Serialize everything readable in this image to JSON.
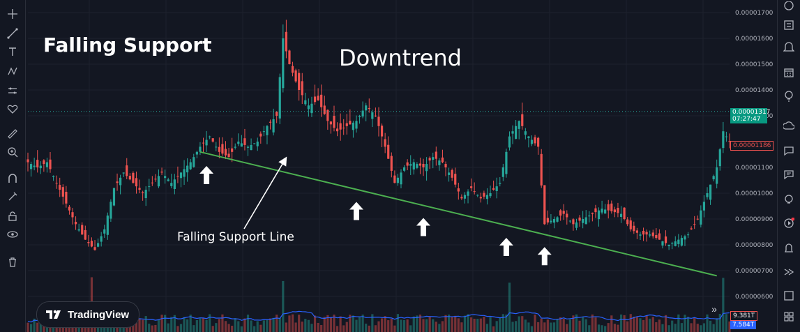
{
  "annotations": {
    "title": "Falling Support",
    "trend_label": "Downtrend",
    "support_line_label": "Falling Support Line"
  },
  "logo": {
    "text": "TradingView"
  },
  "price_scale": {
    "ticks": [
      "0.00001700",
      "0.00001600",
      "0.00001500",
      "0.00001400",
      "0.00001300",
      "0.00001100",
      "0.00001000",
      "0.00000900",
      "0.00000800",
      "0.00000700",
      "0.00000600"
    ],
    "current_price": "0.00001317",
    "countdown": "07:27:47",
    "marker_price": "0.00001186",
    "volume_tag_red": "9.381T",
    "volume_tag_blue": "7.584T"
  },
  "colors": {
    "background": "#131722",
    "bull": "#26a69a",
    "bear": "#ef5350",
    "support_line": "#4caf50",
    "current_price_tag": "#089981",
    "volume_ma": "#2962ff"
  },
  "chart_data": {
    "type": "candlestick",
    "title": "Falling Support",
    "ylim": [
      5.6e-06,
      1.78e-05
    ],
    "y_ticks": [
      1.7e-05,
      1.6e-05,
      1.5e-05,
      1.4e-05,
      1.3e-05,
      1.1e-05,
      1e-05,
      9e-06,
      8e-06,
      7e-06,
      6e-06
    ],
    "close_path": [
      {
        "i": 0,
        "c": 1.12e-05
      },
      {
        "i": 3,
        "c": 1.1e-05
      },
      {
        "i": 6,
        "c": 1.12e-05
      },
      {
        "i": 9,
        "c": 1.04e-05
      },
      {
        "i": 12,
        "c": 9.6e-06
      },
      {
        "i": 15,
        "c": 8.8e-06
      },
      {
        "i": 18,
        "c": 8.2e-06
      },
      {
        "i": 21,
        "c": 7.8e-06
      },
      {
        "i": 24,
        "c": 8.6e-06
      },
      {
        "i": 27,
        "c": 1.02e-05
      },
      {
        "i": 30,
        "c": 1.08e-05
      },
      {
        "i": 33,
        "c": 1.04e-05
      },
      {
        "i": 36,
        "c": 1e-05
      },
      {
        "i": 39,
        "c": 1.04e-05
      },
      {
        "i": 42,
        "c": 1.08e-05
      },
      {
        "i": 45,
        "c": 1.04e-05
      },
      {
        "i": 48,
        "c": 1.08e-05
      },
      {
        "i": 51,
        "c": 1.12e-05
      },
      {
        "i": 54,
        "c": 1.18e-05
      },
      {
        "i": 57,
        "c": 1.22e-05
      },
      {
        "i": 60,
        "c": 1.16e-05
      },
      {
        "i": 63,
        "c": 1.14e-05
      },
      {
        "i": 66,
        "c": 1.2e-05
      },
      {
        "i": 69,
        "c": 1.18e-05
      },
      {
        "i": 72,
        "c": 1.2e-05
      },
      {
        "i": 75,
        "c": 1.26e-05
      },
      {
        "i": 78,
        "c": 1.3e-05
      },
      {
        "i": 80,
        "c": 1.6e-05
      },
      {
        "i": 82,
        "c": 1.5e-05
      },
      {
        "i": 85,
        "c": 1.4e-05
      },
      {
        "i": 88,
        "c": 1.34e-05
      },
      {
        "i": 91,
        "c": 1.36e-05
      },
      {
        "i": 94,
        "c": 1.28e-05
      },
      {
        "i": 97,
        "c": 1.24e-05
      },
      {
        "i": 100,
        "c": 1.26e-05
      },
      {
        "i": 103,
        "c": 1.28e-05
      },
      {
        "i": 106,
        "c": 1.34e-05
      },
      {
        "i": 109,
        "c": 1.3e-05
      },
      {
        "i": 112,
        "c": 1.18e-05
      },
      {
        "i": 115,
        "c": 1.04e-05
      },
      {
        "i": 118,
        "c": 1.1e-05
      },
      {
        "i": 121,
        "c": 1.12e-05
      },
      {
        "i": 124,
        "c": 1.1e-05
      },
      {
        "i": 127,
        "c": 1.14e-05
      },
      {
        "i": 130,
        "c": 1.12e-05
      },
      {
        "i": 133,
        "c": 1.06e-05
      },
      {
        "i": 136,
        "c": 9.8e-06
      },
      {
        "i": 139,
        "c": 1.02e-05
      },
      {
        "i": 142,
        "c": 9.8e-06
      },
      {
        "i": 145,
        "c": 1e-05
      },
      {
        "i": 148,
        "c": 1.04e-05
      },
      {
        "i": 151,
        "c": 1.22e-05
      },
      {
        "i": 154,
        "c": 1.28e-05
      },
      {
        "i": 157,
        "c": 1.22e-05
      },
      {
        "i": 160,
        "c": 1.18e-05
      },
      {
        "i": 162,
        "c": 8.8e-06
      },
      {
        "i": 165,
        "c": 9e-06
      },
      {
        "i": 168,
        "c": 9.2e-06
      },
      {
        "i": 171,
        "c": 8.8e-06
      },
      {
        "i": 174,
        "c": 9e-06
      },
      {
        "i": 177,
        "c": 9.2e-06
      },
      {
        "i": 180,
        "c": 9.4e-06
      },
      {
        "i": 183,
        "c": 9.3e-06
      },
      {
        "i": 186,
        "c": 9.2e-06
      },
      {
        "i": 189,
        "c": 8.6e-06
      },
      {
        "i": 192,
        "c": 8.4e-06
      },
      {
        "i": 195,
        "c": 8.4e-06
      },
      {
        "i": 198,
        "c": 8.2e-06
      },
      {
        "i": 201,
        "c": 8e-06
      },
      {
        "i": 204,
        "c": 8.2e-06
      },
      {
        "i": 207,
        "c": 8.4e-06
      },
      {
        "i": 210,
        "c": 9e-06
      },
      {
        "i": 213,
        "c": 1e-05
      },
      {
        "i": 216,
        "c": 1.1e-05
      },
      {
        "i": 218,
        "c": 1.24e-05
      },
      {
        "i": 220,
        "c": 1.2e-05
      }
    ],
    "series": [
      {
        "type": "line",
        "from": {
          "i": 54,
          "price": 1.16e-05
        },
        "to": {
          "i": 216,
          "price": 6.8e-06
        }
      }
    ],
    "support_touch_points": [
      56,
      103,
      124,
      150,
      162
    ],
    "last_price": 1.317e-05,
    "marker_price": 1.186e-05
  }
}
